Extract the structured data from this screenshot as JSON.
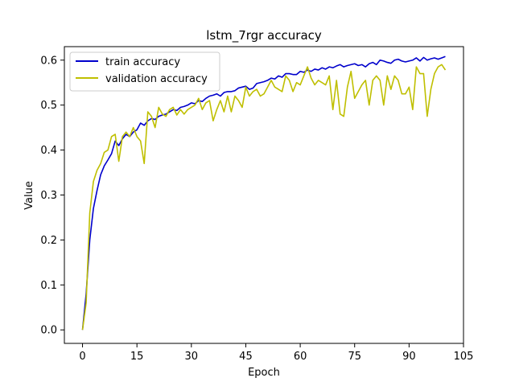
{
  "chart_data": {
    "type": "line",
    "title": "lstm_7rgr accuracy",
    "xlabel": "Epoch",
    "ylabel": "Value",
    "xlim": [
      -5,
      105
    ],
    "ylim": [
      -0.03,
      0.63
    ],
    "xticks": [
      0,
      15,
      30,
      45,
      60,
      75,
      90,
      105
    ],
    "yticks": [
      0.0,
      0.1,
      0.2,
      0.3,
      0.4,
      0.5,
      0.6
    ],
    "grid": false,
    "legend_position": "top-left",
    "series": [
      {
        "name": "train accuracy",
        "color": "#0000cc",
        "values": [
          0.0,
          0.08,
          0.2,
          0.27,
          0.31,
          0.345,
          0.365,
          0.378,
          0.392,
          0.42,
          0.41,
          0.425,
          0.435,
          0.43,
          0.44,
          0.445,
          0.46,
          0.455,
          0.465,
          0.47,
          0.468,
          0.475,
          0.478,
          0.48,
          0.485,
          0.49,
          0.488,
          0.495,
          0.497,
          0.5,
          0.505,
          0.503,
          0.51,
          0.508,
          0.515,
          0.52,
          0.522,
          0.525,
          0.52,
          0.528,
          0.53,
          0.53,
          0.532,
          0.538,
          0.54,
          0.542,
          0.535,
          0.538,
          0.548,
          0.55,
          0.552,
          0.555,
          0.56,
          0.558,
          0.565,
          0.562,
          0.57,
          0.57,
          0.568,
          0.568,
          0.575,
          0.573,
          0.578,
          0.575,
          0.58,
          0.578,
          0.583,
          0.58,
          0.585,
          0.583,
          0.587,
          0.59,
          0.585,
          0.588,
          0.59,
          0.592,
          0.588,
          0.59,
          0.585,
          0.592,
          0.595,
          0.59,
          0.6,
          0.598,
          0.595,
          0.593,
          0.6,
          0.602,
          0.598,
          0.596,
          0.598,
          0.6,
          0.605,
          0.598,
          0.606,
          0.6,
          0.603,
          0.605,
          0.602,
          0.605,
          0.608
        ]
      },
      {
        "name": "validation accuracy",
        "color": "#bfbf00",
        "values": [
          0.0,
          0.06,
          0.26,
          0.33,
          0.355,
          0.37,
          0.395,
          0.4,
          0.43,
          0.435,
          0.375,
          0.43,
          0.44,
          0.43,
          0.45,
          0.43,
          0.42,
          0.37,
          0.485,
          0.475,
          0.45,
          0.495,
          0.48,
          0.475,
          0.49,
          0.495,
          0.478,
          0.49,
          0.48,
          0.49,
          0.495,
          0.5,
          0.515,
          0.49,
          0.505,
          0.51,
          0.465,
          0.49,
          0.51,
          0.485,
          0.52,
          0.485,
          0.52,
          0.51,
          0.495,
          0.54,
          0.52,
          0.53,
          0.535,
          0.52,
          0.525,
          0.54,
          0.555,
          0.54,
          0.535,
          0.53,
          0.565,
          0.555,
          0.53,
          0.55,
          0.545,
          0.565,
          0.585,
          0.56,
          0.545,
          0.555,
          0.55,
          0.545,
          0.565,
          0.49,
          0.555,
          0.48,
          0.475,
          0.54,
          0.575,
          0.515,
          0.53,
          0.545,
          0.555,
          0.5,
          0.555,
          0.565,
          0.555,
          0.5,
          0.565,
          0.535,
          0.565,
          0.555,
          0.525,
          0.525,
          0.54,
          0.49,
          0.585,
          0.57,
          0.57,
          0.475,
          0.535,
          0.57,
          0.585,
          0.59,
          0.578
        ]
      }
    ]
  }
}
